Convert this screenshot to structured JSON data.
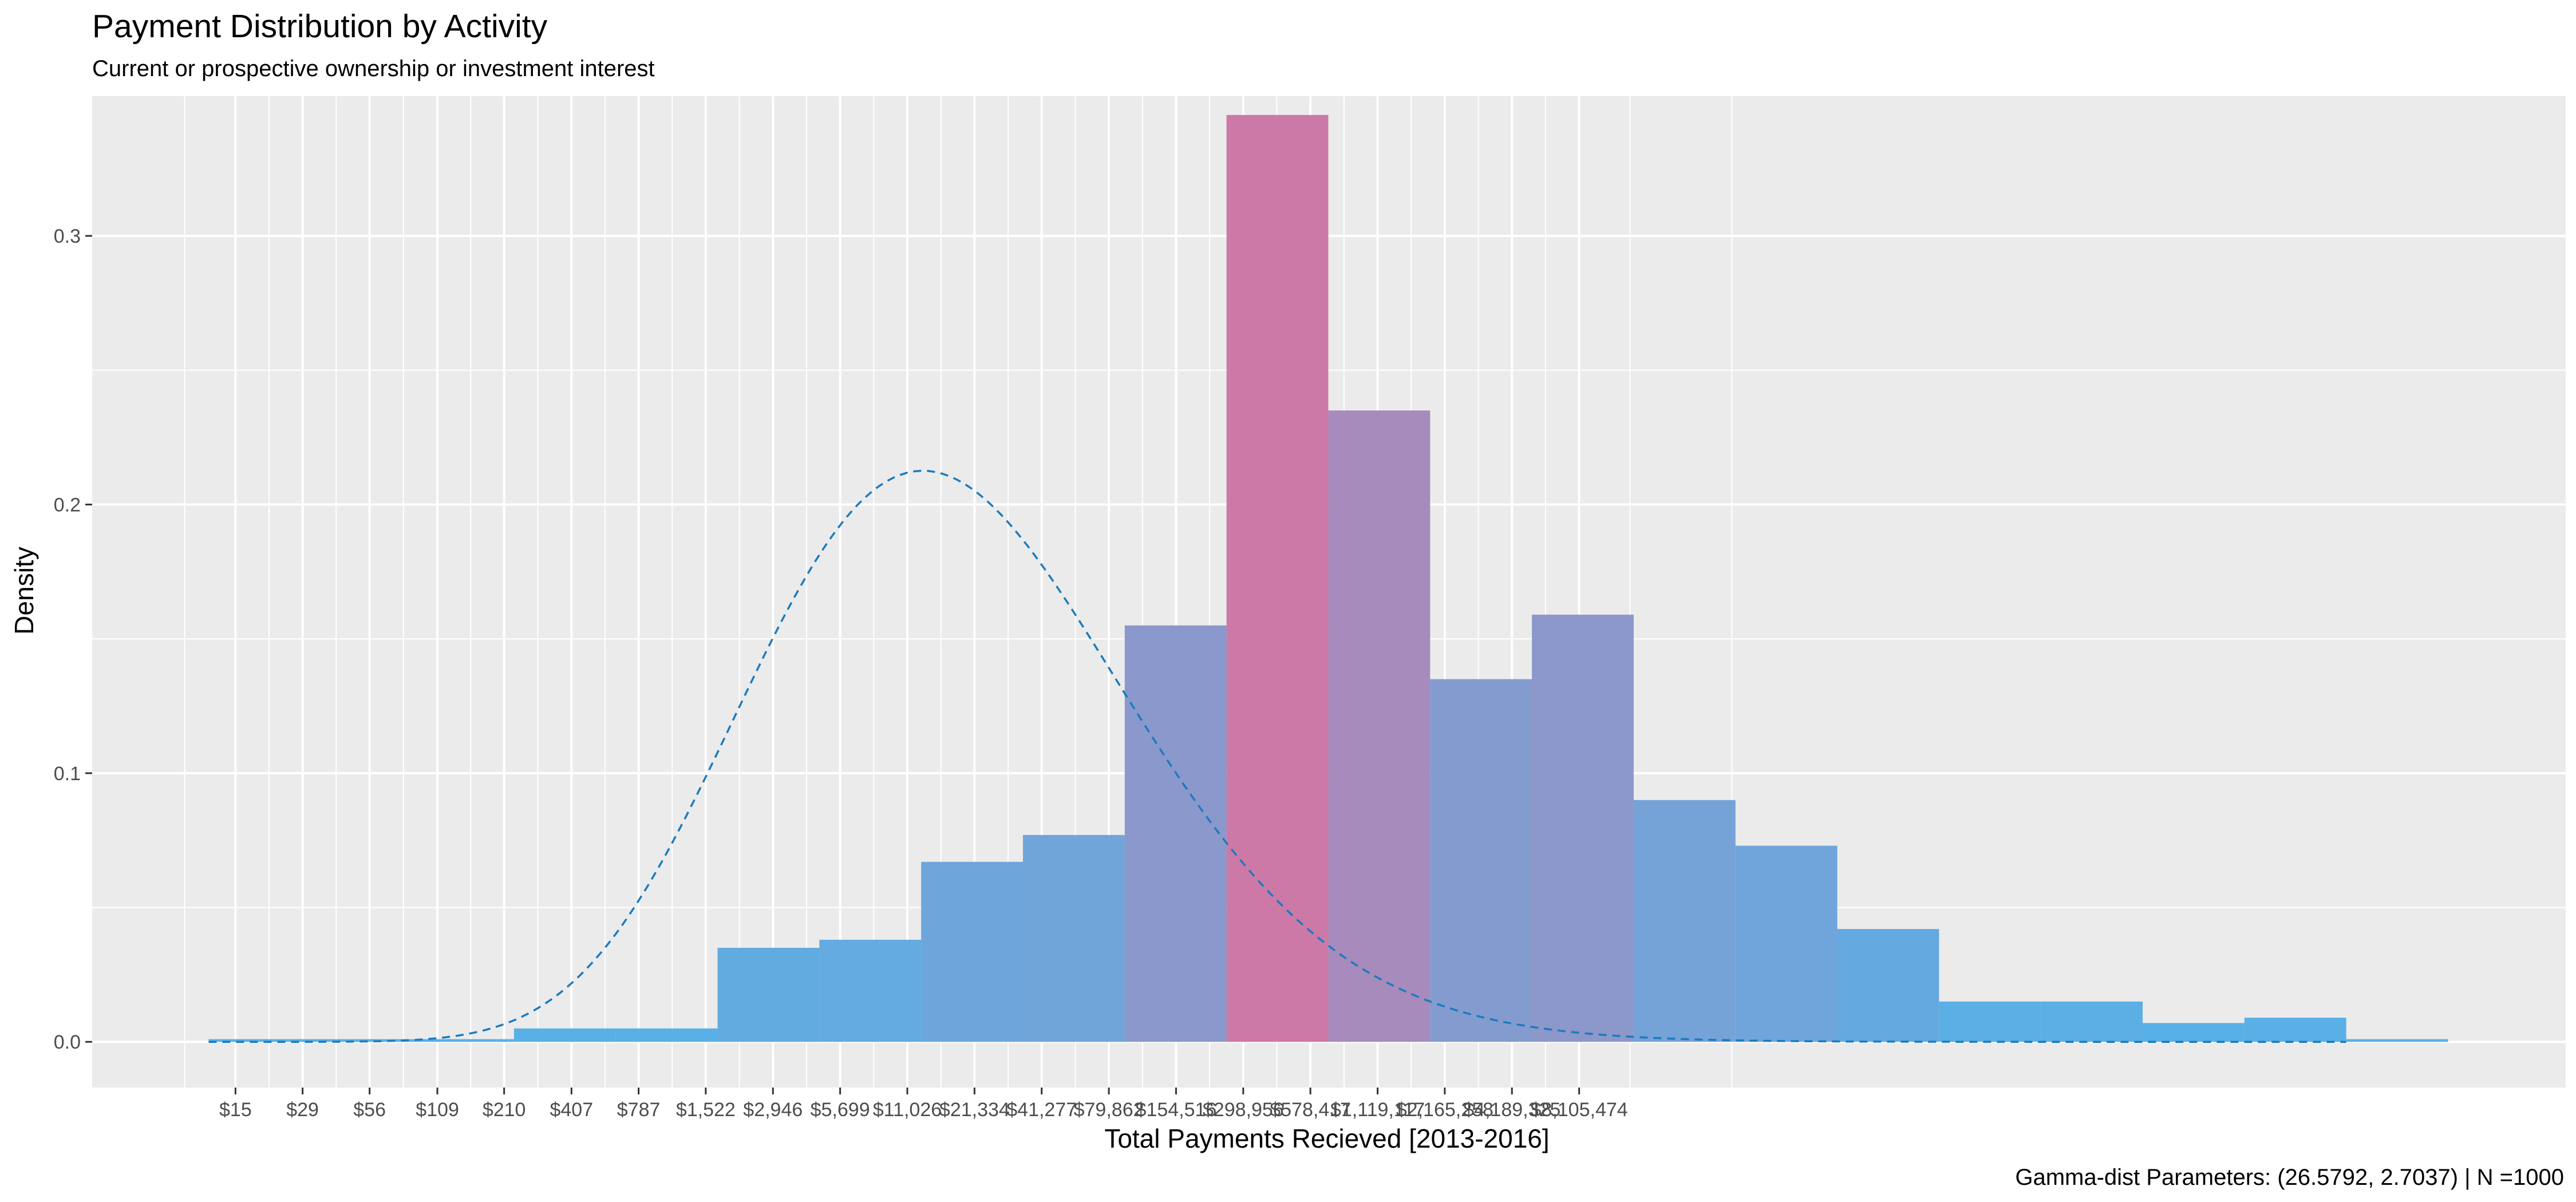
{
  "chart_data": {
    "type": "bar",
    "title": "Payment Distribution by Activity",
    "subtitle": "Current or prospective ownership or investment interest",
    "xlabel": "Total Payments Recieved [2013-2016]",
    "ylabel": "Density",
    "caption": "Gamma-dist Parameters: (26.5792, 2.7037) | N =1000",
    "x_scale": "log",
    "x_tick_labels": [
      "$15",
      "$29",
      "$56",
      "$109",
      "$210",
      "$407",
      "$787",
      "$1,522",
      "$2,946",
      "$5,699",
      "$11,026",
      "$21,334",
      "$41,277",
      "$79,862",
      "$154,516",
      "$298,956",
      "$578,417",
      "$1,119,117",
      "$2,165,258",
      "$4,189,325",
      "$8,105,474"
    ],
    "y_ticks": [
      0.0,
      0.1,
      0.2,
      0.3
    ],
    "y_tick_labels": [
      "0.0",
      "0.1",
      "0.2",
      "0.3"
    ],
    "ylim": [
      -0.017,
      0.352
    ],
    "grid": true,
    "legend": "none",
    "bars": [
      {
        "left": 2.444,
        "right": 3.444,
        "density": 0.001
      },
      {
        "left": 3.444,
        "right": 4.444,
        "density": 0.001
      },
      {
        "left": 4.444,
        "right": 5.444,
        "density": 0.001
      },
      {
        "left": 5.444,
        "right": 6.444,
        "density": 0.005
      },
      {
        "left": 6.444,
        "right": 7.444,
        "density": 0.005
      },
      {
        "left": 7.444,
        "right": 8.444,
        "density": 0.035
      },
      {
        "left": 8.444,
        "right": 9.444,
        "density": 0.038
      },
      {
        "left": 9.444,
        "right": 10.444,
        "density": 0.067
      },
      {
        "left": 10.444,
        "right": 11.444,
        "density": 0.077
      },
      {
        "left": 11.444,
        "right": 12.444,
        "density": 0.155
      },
      {
        "left": 12.444,
        "right": 13.444,
        "density": 0.345
      },
      {
        "left": 13.444,
        "right": 14.444,
        "density": 0.235
      },
      {
        "left": 14.444,
        "right": 15.444,
        "density": 0.135
      },
      {
        "left": 15.444,
        "right": 16.444,
        "density": 0.159
      },
      {
        "left": 16.444,
        "right": 17.444,
        "density": 0.09
      },
      {
        "left": 17.444,
        "right": 18.444,
        "density": 0.073
      },
      {
        "left": 18.444,
        "right": 19.444,
        "density": 0.042
      },
      {
        "left": 19.444,
        "right": 20.444,
        "density": 0.015
      },
      {
        "left": 20.444,
        "right": 21.444,
        "density": 0.015
      },
      {
        "left": 21.444,
        "right": 22.444,
        "density": 0.007
      },
      {
        "left": 22.444,
        "right": 23.444,
        "density": 0.009
      },
      {
        "left": 23.444,
        "right": 24.444,
        "density": 0.001
      }
    ],
    "fit_curve": {
      "distribution": "gamma",
      "shape": 26.5792,
      "rate": 2.7037,
      "style": "dashed",
      "color": "#1b7bbf"
    },
    "colors": {
      "low_density": "#56b1e8",
      "high_density": "#cc79a7",
      "panel_background": "#ebebeb",
      "grid": "#ffffff"
    }
  }
}
